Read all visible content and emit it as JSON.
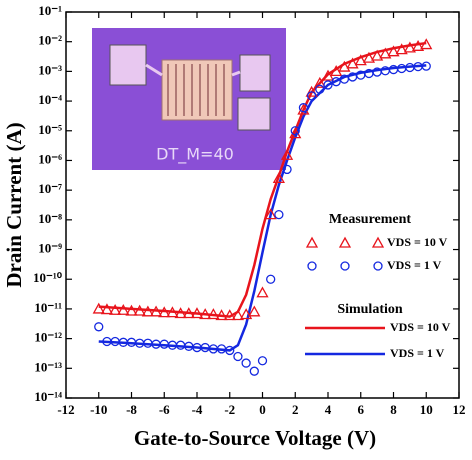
{
  "chart_data": {
    "type": "scatter-line",
    "y_label": "Drain Current (A)",
    "x_label": "Gate-to-Source Voltage (V)",
    "yscale": "log",
    "xlim": [
      -12,
      12
    ],
    "xticks": [
      -12,
      -10,
      -8,
      -6,
      -4,
      -2,
      0,
      2,
      4,
      6,
      8,
      10,
      12
    ],
    "ylim": [
      1e-14,
      0.1
    ],
    "yticks": [
      {
        "value": 0.1,
        "label": "10⁻¹"
      },
      {
        "value": 0.01,
        "label": "10⁻²"
      },
      {
        "value": 0.001,
        "label": "10⁻³"
      },
      {
        "value": 0.0001,
        "label": "10⁻⁴"
      },
      {
        "value": 1e-05,
        "label": "10⁻⁵"
      },
      {
        "value": 1e-06,
        "label": "10⁻⁶"
      },
      {
        "value": 1e-07,
        "label": "10⁻⁷"
      },
      {
        "value": 1e-08,
        "label": "10⁻⁸"
      },
      {
        "value": 1e-09,
        "label": "10⁻⁹"
      },
      {
        "value": 1e-10,
        "label": "10⁻¹⁰"
      },
      {
        "value": 1e-11,
        "label": "10⁻¹¹"
      },
      {
        "value": 1e-12,
        "label": "10⁻¹²"
      },
      {
        "value": 1e-13,
        "label": "10⁻¹³"
      },
      {
        "value": 1e-14,
        "label": "10⁻¹⁴"
      }
    ],
    "inset_label": "DT_M=40",
    "measurement": {
      "title": "Measurement",
      "x": [
        -10,
        -9.5,
        -9,
        -8.5,
        -8,
        -7.5,
        -7,
        -6.5,
        -6,
        -5.5,
        -5,
        -4.5,
        -4,
        -3.5,
        -3,
        -2.5,
        -2,
        -1.5,
        -1,
        -0.5,
        0,
        0.5,
        1,
        1.5,
        2,
        2.5,
        3,
        3.5,
        4,
        4.5,
        5,
        5.5,
        6,
        6.5,
        7,
        7.5,
        8,
        8.5,
        9,
        9.5,
        10
      ],
      "series": [
        {
          "name": "VDS = 10 V",
          "color": "#e8141c",
          "marker": "triangle",
          "values": [
            1e-11,
            9.5e-12,
            9e-12,
            9e-12,
            8.5e-12,
            8.5e-12,
            8e-12,
            8e-12,
            7.5e-12,
            7.5e-12,
            7e-12,
            7e-12,
            7e-12,
            6.5e-12,
            6.5e-12,
            6e-12,
            6e-12,
            6e-12,
            6.5e-12,
            8e-12,
            3.5e-11,
            1.5e-08,
            2.5e-07,
            1.5e-06,
            8e-06,
            5e-05,
            0.0002,
            0.0004,
            0.0007,
            0.001,
            0.0014,
            0.0018,
            0.0023,
            0.0028,
            0.0033,
            0.0039,
            0.0046,
            0.0054,
            0.0062,
            0.007,
            0.008
          ]
        },
        {
          "name": "VDS = 1 V",
          "color": "#1428e0",
          "marker": "circle",
          "values": [
            2.5e-12,
            8e-13,
            8e-13,
            7.5e-13,
            7.5e-13,
            7e-13,
            7e-13,
            6.5e-13,
            6.5e-13,
            6e-13,
            6e-13,
            5.5e-13,
            5e-13,
            5e-13,
            4.5e-13,
            4.5e-13,
            4e-13,
            2.5e-13,
            1.5e-13,
            8e-14,
            1.8e-13,
            1e-10,
            1.5e-08,
            5e-07,
            1e-05,
            6e-05,
            0.00015,
            0.00025,
            0.00035,
            0.00045,
            0.00055,
            0.00065,
            0.00075,
            0.00085,
            0.00095,
            0.00105,
            0.00115,
            0.00125,
            0.00135,
            0.00145,
            0.0015
          ]
        }
      ]
    },
    "simulation": {
      "title": "Simulation",
      "x": [
        -10,
        -8,
        -6,
        -4,
        -2,
        -1.5,
        -1,
        -0.5,
        0,
        0.5,
        1,
        1.5,
        2,
        2.5,
        3,
        4,
        5,
        6,
        7,
        8,
        9,
        10
      ],
      "series": [
        {
          "name": "VDS = 10 V",
          "color": "#e8141c",
          "values": [
            1.2e-11,
            1e-11,
            8.5e-12,
            7e-12,
            5.5e-12,
            8e-12,
            3e-11,
            3e-10,
            5e-09,
            5e-08,
            3e-07,
            2e-06,
            1e-05,
            5e-05,
            0.0002,
            0.0008,
            0.0018,
            0.003,
            0.0045,
            0.006,
            0.0075,
            0.009
          ]
        },
        {
          "name": "VDS = 1 V",
          "color": "#1428e0",
          "values": [
            8e-13,
            7e-13,
            6e-13,
            5e-13,
            4e-13,
            6e-13,
            3e-12,
            4e-11,
            8e-10,
            1.5e-08,
            1.5e-07,
            1e-06,
            6e-06,
            3e-05,
            0.0001,
            0.00035,
            0.00065,
            0.0009,
            0.0011,
            0.0013,
            0.00145,
            0.0016
          ]
        }
      ]
    }
  }
}
